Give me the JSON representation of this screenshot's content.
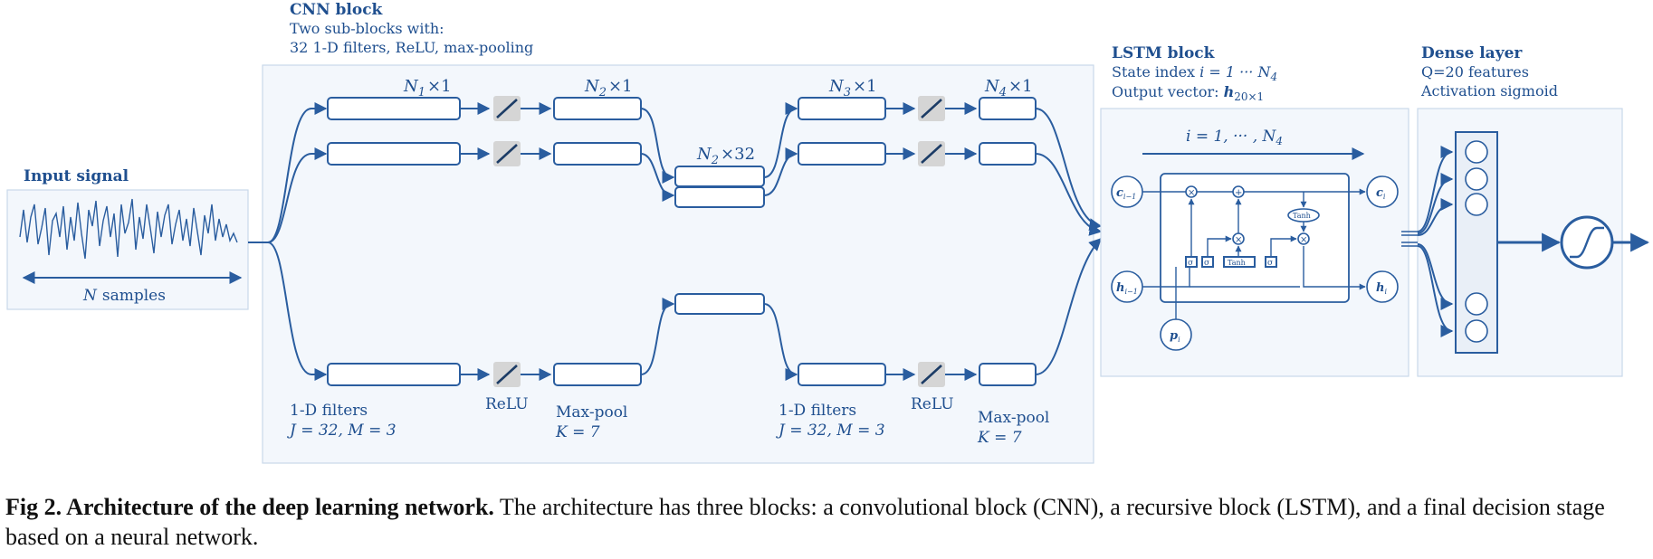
{
  "input": {
    "title": "Input signal",
    "axis_var": "N",
    "axis_rest": "samples"
  },
  "cnn": {
    "title": "CNN block",
    "line1": "Two sub-blocks with:",
    "line2": "32 1-D filters, ReLU, max-pooling",
    "dims": {
      "n1": {
        "base": "N",
        "sub": "1",
        "rest": "×1"
      },
      "n2": {
        "base": "N",
        "sub": "2",
        "rest": "×1"
      },
      "n2x32": {
        "base": "N",
        "sub": "2",
        "rest": "×32"
      },
      "n3": {
        "base": "N",
        "sub": "3",
        "rest": "×1"
      },
      "n4": {
        "base": "N",
        "sub": "4",
        "rest": "×1"
      }
    },
    "labels": {
      "filters": "1-D filters",
      "filters_params": "J = 32,  M = 3",
      "relu": "ReLU",
      "maxpool": "Max-pool",
      "maxpool_k": "K = 7"
    }
  },
  "lstm": {
    "title": "LSTM block",
    "state_pre": "State index ",
    "state_expr": "i = 1 ··· N",
    "state_sub": "4",
    "out_pre": "Output vector: ",
    "out_var": "h",
    "out_sub": "20×1",
    "arrow_expr": "i = 1, ··· , N",
    "arrow_sub": "4",
    "nodes": {
      "c_prev": "c",
      "c_prev_sub": "i−1",
      "c_cur": "c",
      "c_cur_sub": "i",
      "h_prev": "h",
      "h_prev_sub": "i−1",
      "h_cur": "h",
      "h_cur_sub": "i",
      "p": "p",
      "p_sub": "i"
    },
    "gates": {
      "sigma": "σ",
      "tanh": "Tanh",
      "times": "×",
      "plus": "+"
    }
  },
  "dense": {
    "title": "Dense layer",
    "line1": "Q=20 features",
    "line2": "Activation sigmoid"
  },
  "caption": {
    "lead": "Fig 2.  Architecture of the deep learning network.",
    "text": " The architecture has three blocks: a convolutional block (CNN), a recursive block (LSTM), and a final decision stage based on a neural network."
  },
  "colors": {
    "accent": "#2a5d9f",
    "text": "#1f4f8f",
    "panel": "#f3f7fc"
  }
}
